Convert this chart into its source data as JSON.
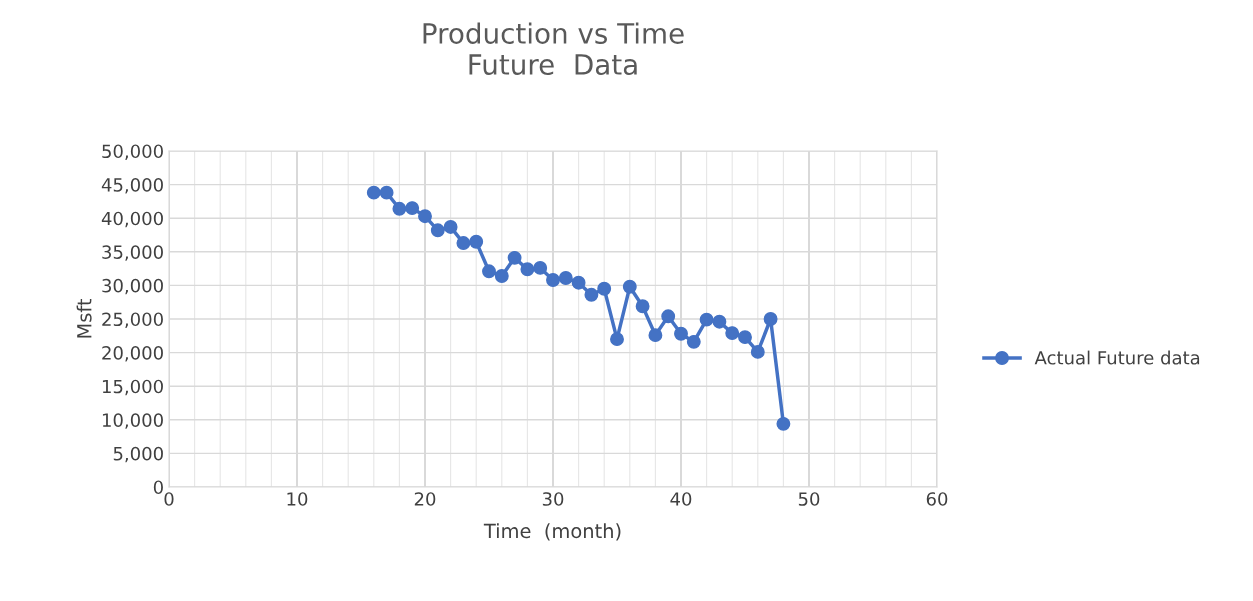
{
  "chart_data": {
    "type": "line",
    "title": "Production vs Time\nFuture  Data",
    "xlabel": "Time  (month)",
    "ylabel": "Msft",
    "x": [
      16,
      17,
      18,
      19,
      20,
      21,
      22,
      23,
      24,
      25,
      26,
      27,
      28,
      29,
      30,
      31,
      32,
      33,
      34,
      35,
      36,
      37,
      38,
      39,
      40,
      41,
      42,
      43,
      44,
      45,
      46,
      47,
      48
    ],
    "series": [
      {
        "name": "Actual Future data",
        "color": "#4472c4",
        "values": [
          43800,
          43800,
          41400,
          41500,
          40300,
          38200,
          38700,
          36300,
          36500,
          32100,
          31400,
          34100,
          32400,
          32600,
          30800,
          31100,
          30400,
          28600,
          29500,
          22000,
          29800,
          26900,
          22600,
          25400,
          22800,
          21600,
          24900,
          24600,
          22900,
          22300,
          20100,
          25000,
          9400
        ]
      }
    ],
    "xlim": [
      0,
      60
    ],
    "xticks": [
      0,
      10,
      20,
      30,
      40,
      50,
      60
    ],
    "ylim": [
      0,
      50000
    ],
    "yticks": [
      {
        "value": 0,
        "label": "0"
      },
      {
        "value": 5000,
        "label": "5,000"
      },
      {
        "value": 10000,
        "label": "10,000"
      },
      {
        "value": 15000,
        "label": "15,000"
      },
      {
        "value": 20000,
        "label": "20,000"
      },
      {
        "value": 25000,
        "label": "25,000"
      },
      {
        "value": 30000,
        "label": "30,000"
      },
      {
        "value": 35000,
        "label": "35,000"
      },
      {
        "value": 40000,
        "label": "40,000"
      },
      {
        "value": 45000,
        "label": "45,000"
      },
      {
        "value": 50000,
        "label": "50,000"
      }
    ],
    "grid": true,
    "legend": "right",
    "marker": "circle",
    "line_style": "solid"
  }
}
